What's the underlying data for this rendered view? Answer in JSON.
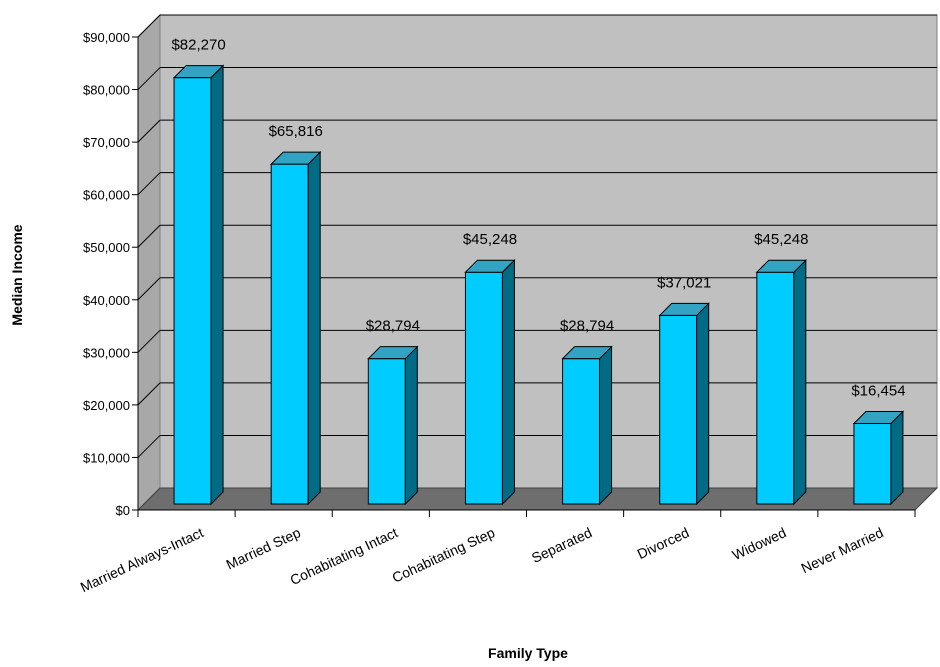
{
  "chart_data": {
    "type": "bar",
    "title": "",
    "xlabel": "Family Type",
    "ylabel": "Median Income",
    "categories": [
      "Married Always-Intact",
      "Married Step",
      "Cohabitating Intact",
      "Cohabitating Step",
      "Separated",
      "Divorced",
      "Widowed",
      "Never Married"
    ],
    "values": [
      82270,
      65816,
      28794,
      45248,
      28794,
      37021,
      45248,
      16454
    ],
    "value_labels": [
      "$82,270",
      "$65,816",
      "$28,794",
      "$45,248",
      "$28,794",
      "$37,021",
      "$45,248",
      "$16,454"
    ],
    "ylim": [
      0,
      90000
    ],
    "y_ticks": [
      0,
      10000,
      20000,
      30000,
      40000,
      50000,
      60000,
      70000,
      80000,
      90000
    ],
    "y_tick_labels": [
      "$0",
      "$10,000",
      "$20,000",
      "$30,000",
      "$40,000",
      "$50,000",
      "$60,000",
      "$70,000",
      "$80,000",
      "$90,000"
    ],
    "grid": true,
    "legend": "none",
    "style": "3d",
    "colors": {
      "bar_front": "#00ccff",
      "bar_side": "#006b85",
      "bar_top": "#33a3c4",
      "wall": "#c0c0c0",
      "wall_side": "#a8a8a8",
      "floor": "#6e6e6e",
      "gridline": "#000000"
    }
  }
}
